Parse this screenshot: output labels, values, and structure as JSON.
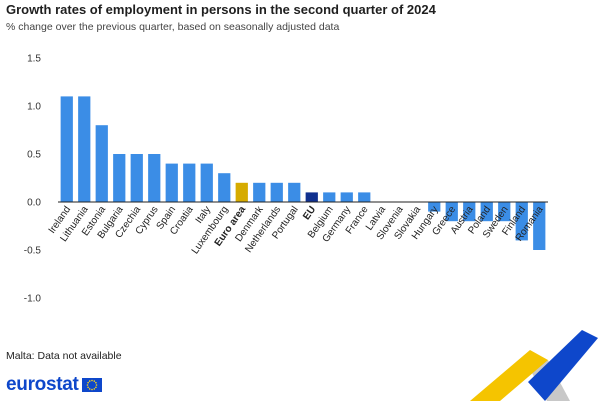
{
  "header": {
    "title": "Growth rates of employment in persons in the second quarter of 2024",
    "subtitle": "% change over the previous quarter, based on seasonally adjusted data"
  },
  "footnote": "Malta: Data not available",
  "brand": {
    "name": "eurostat",
    "logo_icon": "eu-flag-icon"
  },
  "colors": {
    "country": "#3b8de6",
    "euro_area": "#d6ab00",
    "eu": "#10308f",
    "deco_yellow": "#f5c400",
    "deco_blue": "#0e47cb",
    "deco_gray": "#c8c8c8"
  },
  "chart_data": {
    "type": "bar",
    "title": "Growth rates of employment in persons in the second quarter of 2024",
    "subtitle": "% change over the previous quarter, based on seasonally adjusted data",
    "ylim": [
      -1.0,
      1.5
    ],
    "yticks": [
      -1.0,
      -0.5,
      0.0,
      0.5,
      1.0,
      1.5
    ],
    "ytick_labels": [
      "-1.0",
      "-0.5",
      "0.0",
      "0.5",
      "1.0",
      "1.5"
    ],
    "grid": false,
    "categories": [
      "Ireland",
      "Lithuania",
      "Estonia",
      "Bulgaria",
      "Czechia",
      "Cyprus",
      "Spain",
      "Croatia",
      "Italy",
      "Luxembourg",
      "Euro area",
      "Denmark",
      "Netherlands",
      "Portugal",
      "EU",
      "Belgium",
      "Germany",
      "France",
      "Latvia",
      "Slovenia",
      "Slovakia",
      "Hungary",
      "Greece",
      "Austria",
      "Poland",
      "Sweden",
      "Finland",
      "Romania"
    ],
    "values": [
      1.1,
      1.1,
      0.8,
      0.5,
      0.5,
      0.5,
      0.4,
      0.4,
      0.4,
      0.3,
      0.2,
      0.2,
      0.2,
      0.2,
      0.1,
      0.1,
      0.1,
      0.1,
      0.0,
      0.0,
      0.0,
      -0.1,
      -0.2,
      -0.2,
      -0.2,
      -0.2,
      -0.4,
      -0.5
    ],
    "highlight": {
      "Euro area": "euro_area",
      "EU": "eu"
    },
    "bold_labels": [
      "Euro area",
      "EU"
    ]
  }
}
